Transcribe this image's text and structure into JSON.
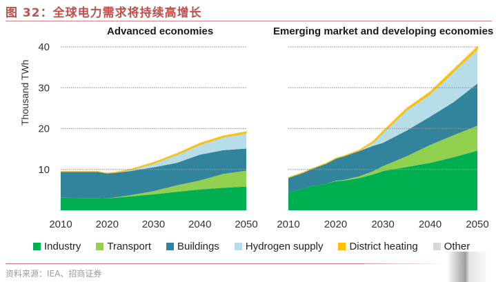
{
  "figure": {
    "title": "图 32：全球电力需求将持续高增长",
    "source": "资料来源：IEA、招商证券"
  },
  "colors": {
    "Industry": "#00b050",
    "Transport": "#92d050",
    "Buildings": "#31849b",
    "Hydrogen supply": "#b7dde8",
    "District heating": "#ffc000",
    "Other": "#d9d9d9",
    "title_red": "#c0504d",
    "gridline": "#999999"
  },
  "legend": [
    {
      "label": "Industry",
      "color": "#00b050"
    },
    {
      "label": "Transport",
      "color": "#92d050"
    },
    {
      "label": "Buildings",
      "color": "#31849b"
    },
    {
      "label": "Hydrogen supply",
      "color": "#b7dde8"
    },
    {
      "label": "District heating",
      "color": "#ffc000"
    },
    {
      "label": "Other",
      "color": "#d9d9d9"
    }
  ],
  "chart_data": [
    {
      "type": "area",
      "stacked": true,
      "title": "Advanced economies",
      "xlabel": "",
      "ylabel": "Thousand TWh",
      "ylim": [
        0,
        40
      ],
      "yticks": [
        10,
        20,
        30,
        40
      ],
      "xlim": [
        2010,
        2050
      ],
      "xticks": [
        2010,
        2020,
        2030,
        2040,
        2050
      ],
      "grid": "horizontal dotted",
      "legend_position": "bottom",
      "x": [
        2010,
        2015,
        2018,
        2020,
        2022,
        2025,
        2030,
        2035,
        2040,
        2045,
        2050
      ],
      "series": [
        {
          "name": "Industry",
          "values": [
            3.1,
            3.0,
            3.0,
            2.9,
            3.1,
            3.4,
            3.9,
            4.5,
            5.1,
            5.5,
            5.8
          ]
        },
        {
          "name": "Transport",
          "values": [
            0.0,
            0.0,
            0.0,
            0.0,
            0.1,
            0.3,
            0.8,
            1.6,
            2.2,
            3.4,
            3.9
          ]
        },
        {
          "name": "Buildings",
          "values": [
            6.4,
            6.5,
            6.5,
            6.2,
            6.0,
            5.9,
            5.8,
            5.5,
            6.3,
            5.8,
            5.4
          ]
        },
        {
          "name": "Hydrogen supply",
          "values": [
            0.0,
            0.0,
            0.0,
            0.0,
            0.1,
            0.3,
            1.0,
            2.0,
            2.5,
            3.2,
            3.8
          ]
        },
        {
          "name": "District heating",
          "values": [
            0.0,
            0.0,
            0.0,
            0.0,
            0.05,
            0.1,
            0.2,
            0.25,
            0.3,
            0.3,
            0.3
          ]
        },
        {
          "name": "Other",
          "values": [
            0.05,
            0.05,
            0.05,
            0.05,
            0.05,
            0.05,
            0.05,
            0.05,
            0.05,
            0.05,
            0.05
          ]
        }
      ]
    },
    {
      "type": "area",
      "stacked": true,
      "title": "Emerging market and developing economies",
      "xlabel": "",
      "ylabel": "Thousand TWh",
      "ylim": [
        0,
        40
      ],
      "yticks": [
        10,
        20,
        30,
        40
      ],
      "xlim": [
        2010,
        2050
      ],
      "xticks": [
        2010,
        2020,
        2030,
        2040,
        2050
      ],
      "grid": "horizontal dotted",
      "legend_position": "bottom",
      "x": [
        2010,
        2013,
        2015,
        2018,
        2020,
        2022,
        2025,
        2028,
        2030,
        2035,
        2040,
        2045,
        2050
      ],
      "series": [
        {
          "name": "Industry",
          "values": [
            4.4,
            5.2,
            5.9,
            6.5,
            7.1,
            7.3,
            7.9,
            8.8,
            9.6,
            10.6,
            11.6,
            13.0,
            14.6
          ]
        },
        {
          "name": "Transport",
          "values": [
            0.0,
            0.0,
            0.0,
            0.0,
            0.1,
            0.2,
            0.4,
            0.8,
            1.2,
            2.6,
            4.4,
            5.4,
            6.1
          ]
        },
        {
          "name": "Buildings",
          "values": [
            3.6,
            4.0,
            4.3,
            5.0,
            5.5,
            5.9,
            6.2,
            6.2,
            5.7,
            6.3,
            6.9,
            8.1,
            10.3
          ]
        },
        {
          "name": "Hydrogen supply",
          "values": [
            0.0,
            0.0,
            0.0,
            0.0,
            0.0,
            0.0,
            0.1,
            0.9,
            2.5,
            5.0,
            5.6,
            7.5,
            8.5
          ]
        },
        {
          "name": "District heating",
          "values": [
            0.0,
            0.0,
            0.0,
            0.0,
            0.0,
            0.0,
            0.1,
            0.2,
            0.3,
            0.4,
            0.5,
            0.5,
            0.5
          ]
        },
        {
          "name": "Other",
          "values": [
            0.05,
            0.05,
            0.05,
            0.05,
            0.05,
            0.05,
            0.05,
            0.05,
            0.05,
            0.05,
            0.05,
            0.05,
            0.05
          ]
        }
      ]
    }
  ]
}
